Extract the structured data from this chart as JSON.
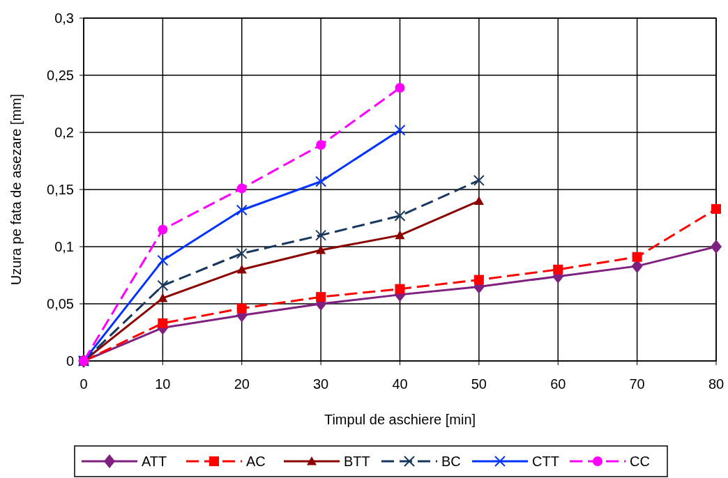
{
  "chart_data": {
    "type": "line",
    "xlabel": "Timpul de aschiere [min]",
    "ylabel": "Uzura pe fata de asezare [mm]",
    "xlim": [
      0,
      80
    ],
    "xticks": [
      0,
      10,
      20,
      30,
      40,
      50,
      60,
      70,
      80
    ],
    "ylim": [
      0,
      0.3
    ],
    "yticks": [
      0,
      {
        "value": 0.05,
        "label": "0,05"
      },
      {
        "value": 0.1,
        "label": "0,1"
      },
      {
        "value": 0.15,
        "label": "0,15"
      },
      {
        "value": 0.2,
        "label": "0,2"
      },
      {
        "value": 0.25,
        "label": "0,25"
      },
      {
        "value": 0.3,
        "label": "0,3"
      }
    ],
    "grid": true,
    "legend": "bottom",
    "series": [
      {
        "name": "ATT",
        "color": "#7f1f7f",
        "marker": "diamond",
        "line_style": "solid",
        "x": [
          0,
          10,
          20,
          30,
          40,
          50,
          60,
          70,
          80
        ],
        "values": [
          0,
          0.029,
          0.04,
          0.05,
          0.058,
          0.065,
          0.074,
          0.083,
          0.1
        ]
      },
      {
        "name": "AC",
        "color": "#ff0000",
        "marker": "square",
        "line_style": "dashed",
        "x": [
          0,
          10,
          20,
          30,
          40,
          50,
          60,
          70,
          80
        ],
        "values": [
          0,
          0.033,
          0.046,
          0.056,
          0.063,
          0.071,
          0.08,
          0.091,
          0.133
        ]
      },
      {
        "name": "BTT",
        "color": "#8b0000",
        "marker": "triangle",
        "line_style": "solid",
        "x": [
          0,
          10,
          20,
          30,
          40,
          50
        ],
        "values": [
          0,
          0.055,
          0.08,
          0.097,
          0.11,
          0.14
        ]
      },
      {
        "name": "BC",
        "color": "#17375e",
        "marker": "cross",
        "line_style": "dashed",
        "x": [
          0,
          10,
          20,
          30,
          40,
          50
        ],
        "values": [
          0,
          0.066,
          0.094,
          0.11,
          0.127,
          0.158
        ]
      },
      {
        "name": "CTT",
        "color": "#0033ff",
        "marker": "cross",
        "line_style": "solid",
        "x": [
          0,
          10,
          20,
          30,
          40
        ],
        "values": [
          0,
          0.088,
          0.132,
          0.157,
          0.202
        ]
      },
      {
        "name": "CC",
        "color": "#ff00ff",
        "marker": "circle",
        "line_style": "dashed",
        "x": [
          0,
          10,
          20,
          30,
          40
        ],
        "values": [
          0,
          0.115,
          0.151,
          0.189,
          0.239
        ]
      }
    ]
  }
}
